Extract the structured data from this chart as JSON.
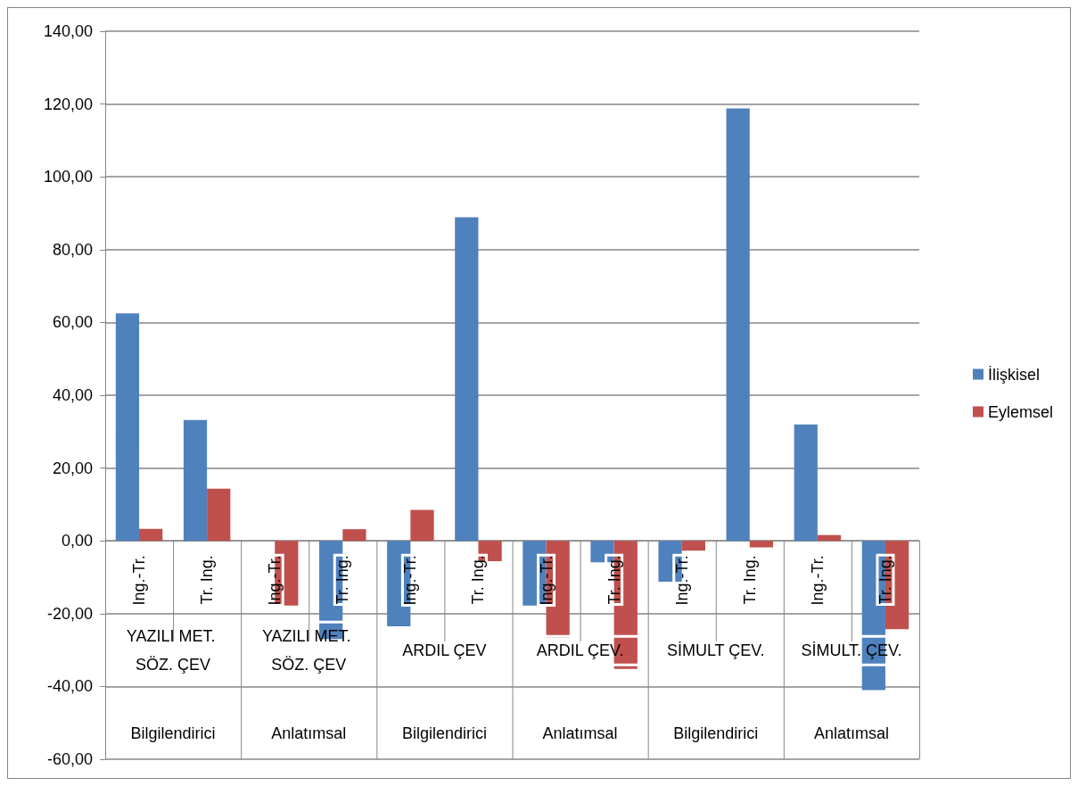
{
  "chart_data": {
    "type": "bar",
    "categories": [
      "Ing.-Tr.",
      "Tr. Ing.",
      "Ing.-Tr.",
      "Tr. Ing.",
      "Ing.-Tr.",
      "Tr. Ing.",
      "Ing.-Tr.",
      "Tr. Ing.",
      "Ing.-Tr.",
      "Tr. Ing.",
      "Ing.-Tr.",
      "Tr. Ing."
    ],
    "series": [
      {
        "name": "İlişkisel",
        "color": "#4f81bd",
        "values": [
          62.5,
          33.2,
          0,
          -27.0,
          -23.5,
          88.9,
          -17.8,
          -5.9,
          -11.2,
          118.8,
          32.0,
          -41.0
        ]
      },
      {
        "name": "Eylemsel",
        "color": "#c0504d",
        "values": [
          3.3,
          14.3,
          -17.8,
          3.2,
          8.5,
          -5.6,
          -26.6,
          -35.2,
          -2.7,
          -1.8,
          1.6,
          -24.3
        ]
      }
    ],
    "ylim": [
      -60,
      140
    ],
    "yticks": [
      {
        "value": -60,
        "label": "-60,00"
      },
      {
        "value": -40,
        "label": "-40,00"
      },
      {
        "value": -20,
        "label": "-20,00"
      },
      {
        "value": 0,
        "label": "0,00"
      },
      {
        "value": 20,
        "label": "20,00"
      },
      {
        "value": 40,
        "label": "40,00"
      },
      {
        "value": 60,
        "label": "60,00"
      },
      {
        "value": 80,
        "label": "80,00"
      },
      {
        "value": 100,
        "label": "100,00"
      },
      {
        "value": 120,
        "label": "120,00"
      },
      {
        "value": 140,
        "label": "140,00"
      }
    ],
    "grid": "y",
    "legend": "right",
    "annotations": [
      "YAZILI MET. SÖZ. ÇEV",
      "YAZILI MET. SÖZ. ÇEV",
      "ARDIL ÇEV",
      "ARDIL ÇEV.",
      "SİMULT ÇEV.",
      "SİMULT. ÇEV.",
      "Bilgilendirici",
      "Anlatımsal",
      "Bilgilendirici",
      "Anlatımsal",
      "Bilgilendirici",
      "Anlatımsal"
    ]
  }
}
